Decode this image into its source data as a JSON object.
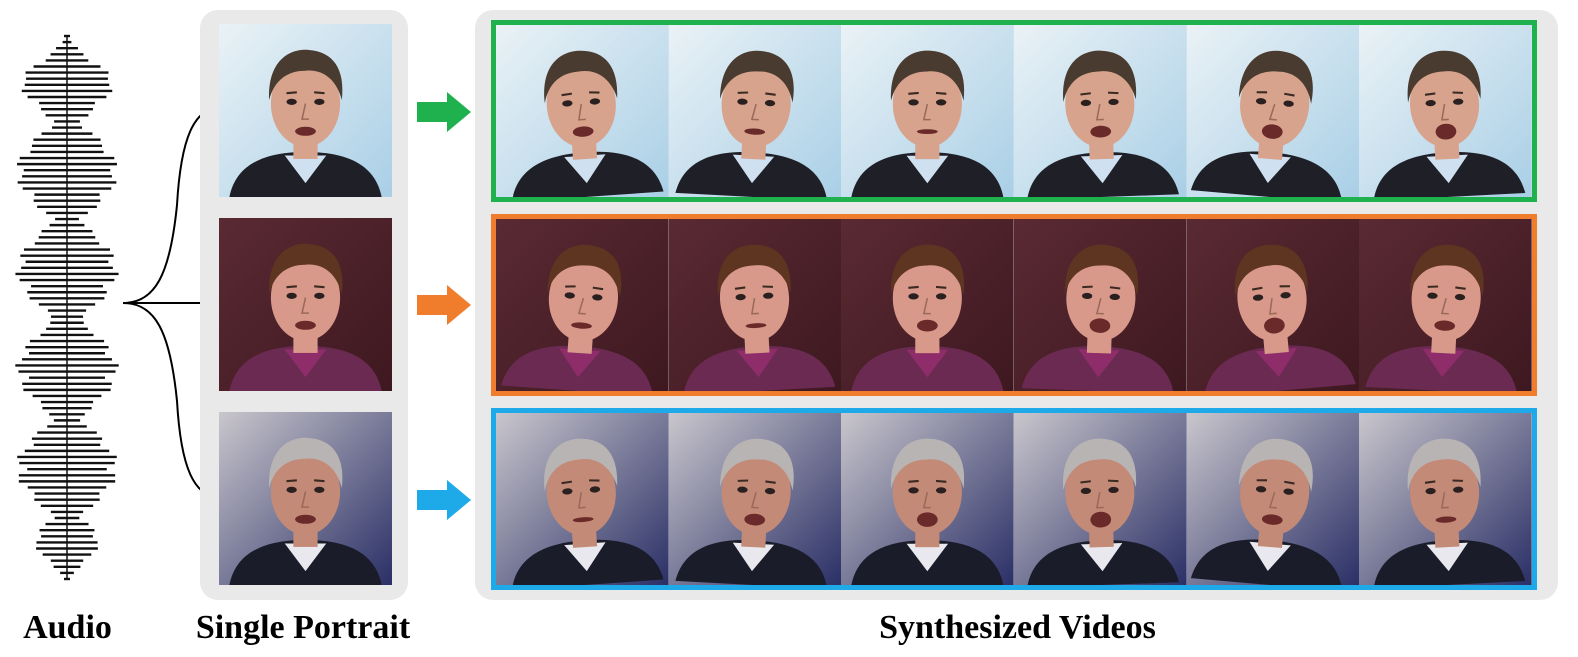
{
  "captions": {
    "audio": "Audio",
    "single_portrait": "Single Portrait",
    "synthesized_videos": "Synthesized Videos"
  },
  "colors": {
    "panel": "#e9e9e9",
    "green": "#1fb14d",
    "orange": "#ef7d2b",
    "blue": "#1ea9e8"
  },
  "rows": [
    {
      "subject": "subject-1",
      "border": "#1fb14d",
      "bg": "#a9cfe6",
      "bg2": "#eaf2f6",
      "skin": "#d7a38c",
      "hair": "#4a3b31",
      "suit": "#1f2027",
      "shirt": "#cfe0f0",
      "frames": 6
    },
    {
      "subject": "subject-2",
      "border": "#ef7d2b",
      "bg": "#3e1820",
      "bg2": "#5a2a33",
      "skin": "#d9998a",
      "hair": "#5e3520",
      "suit": "#6b2a52",
      "shirt": "#8e2d6a",
      "frames": 6
    },
    {
      "subject": "subject-3",
      "border": "#1ea9e8",
      "bg": "#2a2f66",
      "bg2": "#c9c6cc",
      "skin": "#c48a78",
      "hair": "#b9b4b4",
      "suit": "#1b1c2a",
      "shirt": "#e8e8ee",
      "frames": 6
    }
  ],
  "icons": {
    "waveform": "audio-waveform-icon",
    "arrow": "right-arrow-icon"
  }
}
